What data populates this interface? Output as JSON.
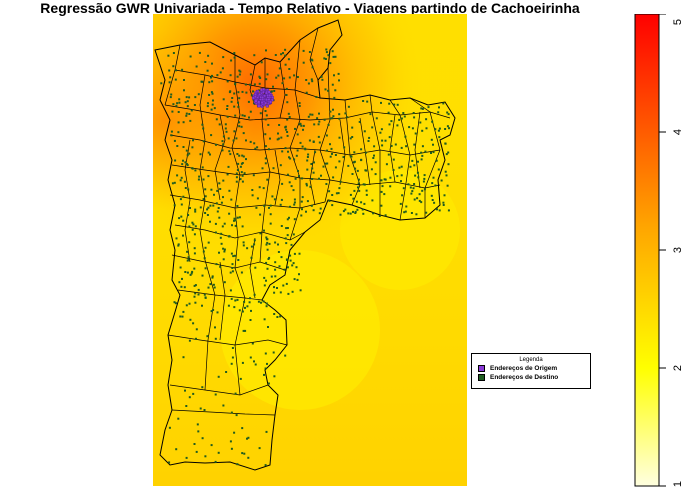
{
  "title": "Regressão GWR Univariada - Tempo Relativo - Viagens partindo de Cachoeirinha",
  "legend": {
    "title": "Legenda",
    "items": [
      {
        "label": "Endereços de Origem",
        "color": "#8a3ad8"
      },
      {
        "label": "Endereços de Destino",
        "color": "#1f5c1f"
      }
    ]
  },
  "colorbar": {
    "min": 1,
    "max": 5,
    "ticks": [
      "1",
      "2",
      "3",
      "4",
      "5"
    ],
    "colors": [
      "#ffffe0",
      "#ffff00",
      "#ffa500",
      "#ff0000"
    ]
  },
  "colors": {
    "background_surface": "#ffe000",
    "hotspot": "#ff6a00",
    "boundary": "#000000"
  }
}
